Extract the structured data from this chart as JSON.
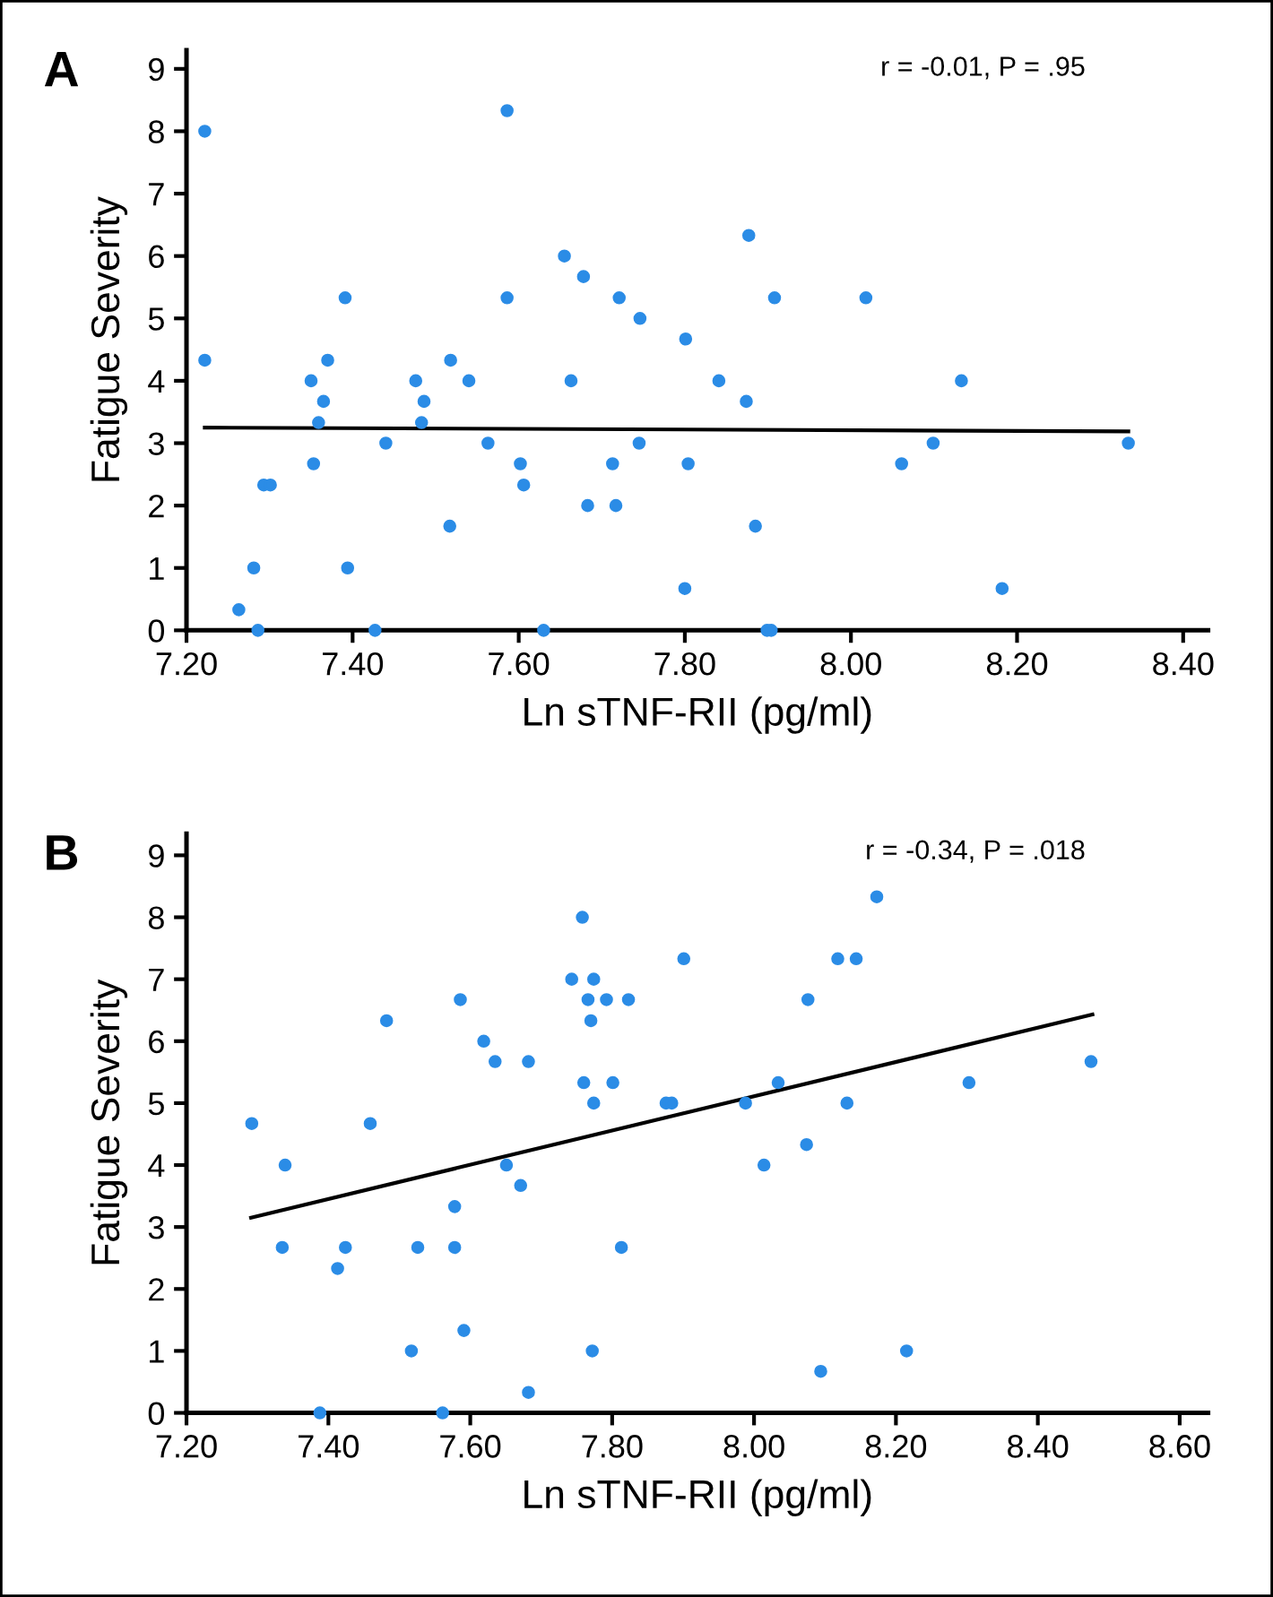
{
  "chart_data": [
    {
      "type": "scatter",
      "title": "A",
      "xlabel": "Ln sTNF-RII (pg/ml)",
      "ylabel": "Fatigue Severity",
      "annotations": [
        "r = -0.01, P = .95"
      ],
      "xlim": [
        7.2,
        8.43
      ],
      "ylim": [
        0,
        9.3
      ],
      "xticks": [
        {
          "value": 7.2,
          "label": "7.20"
        },
        {
          "value": 7.4,
          "label": "7.40"
        },
        {
          "value": 7.6,
          "label": "7.60"
        },
        {
          "value": 7.8,
          "label": "7.80"
        },
        {
          "value": 8.0,
          "label": "8.00"
        },
        {
          "value": 8.2,
          "label": "8.20"
        },
        {
          "value": 8.4,
          "label": "8.40"
        }
      ],
      "yticks": [
        0,
        1,
        2,
        3,
        4,
        5,
        6,
        7,
        8,
        9
      ],
      "grid": false,
      "legend": false,
      "marker": "circle",
      "series": [
        {
          "color": "#2b8ce6",
          "x": [
            7.222,
            7.222,
            7.263,
            7.281,
            7.286,
            7.293,
            7.301,
            7.35,
            7.37,
            7.365,
            7.359,
            7.353,
            7.391,
            7.394,
            7.427,
            7.44,
            7.476,
            7.486,
            7.483,
            7.518,
            7.517,
            7.54,
            7.563,
            7.586,
            7.586,
            7.602,
            7.606,
            7.63,
            7.655,
            7.663,
            7.678,
            7.683,
            7.721,
            7.713,
            7.717,
            7.746,
            7.745,
            7.801,
            7.841,
            7.874,
            7.877,
            7.908,
            7.804,
            7.8,
            7.885,
            7.899,
            7.904,
            8.018,
            8.133,
            8.099,
            8.061,
            8.182,
            8.334
          ],
          "values": [
            8,
            4.33,
            0.33,
            1,
            0,
            2.33,
            2.33,
            4,
            4.33,
            3.67,
            3.33,
            2.67,
            5.33,
            1,
            0,
            3,
            4,
            3.67,
            3.33,
            4.33,
            1.67,
            4,
            3,
            8.33,
            5.33,
            2.67,
            2.33,
            0,
            6,
            4,
            5.67,
            2,
            5.33,
            2.67,
            2,
            5,
            3,
            4.67,
            4,
            3.67,
            6.33,
            5.33,
            2.67,
            0.67,
            1.67,
            0,
            0,
            5.33,
            4,
            3,
            2.67,
            0.67,
            3
          ]
        },
        {
          "type": "line",
          "color": "#000000",
          "marker": "none",
          "x": [
            7.222,
            8.334
          ],
          "values": [
            3.25,
            3.19
          ]
        }
      ]
    },
    {
      "type": "scatter",
      "title": "B",
      "xlabel": "Ln sTNF-RII (pg/ml)",
      "ylabel": "Fatigue Severity",
      "annotations": [
        "r = -0.34, P = .018"
      ],
      "xlim": [
        7.2,
        8.64
      ],
      "ylim": [
        0,
        9.35
      ],
      "xticks": [
        {
          "value": 7.2,
          "label": "7.20"
        },
        {
          "value": 7.4,
          "label": "7.40"
        },
        {
          "value": 7.6,
          "label": "7.60"
        },
        {
          "value": 7.8,
          "label": "7.80"
        },
        {
          "value": 8.0,
          "label": "8.00"
        },
        {
          "value": 8.2,
          "label": "8.20"
        },
        {
          "value": 8.4,
          "label": "8.40"
        },
        {
          "value": 8.6,
          "label": "8.60"
        }
      ],
      "yticks": [
        0,
        1,
        2,
        3,
        4,
        5,
        6,
        7,
        8,
        9
      ],
      "grid": false,
      "legend": false,
      "marker": "circle",
      "series": [
        {
          "color": "#2b8ce6",
          "x": [
            7.292,
            7.339,
            7.335,
            7.388,
            7.413,
            7.424,
            7.459,
            7.482,
            7.517,
            7.526,
            7.561,
            7.578,
            7.578,
            7.586,
            7.591,
            7.619,
            7.635,
            7.651,
            7.671,
            7.682,
            7.682,
            7.743,
            7.758,
            7.774,
            7.766,
            7.792,
            7.823,
            7.77,
            7.76,
            7.801,
            7.774,
            7.772,
            7.813,
            7.901,
            7.876,
            7.884,
            7.988,
            8.034,
            8.014,
            8.074,
            8.076,
            8.118,
            8.144,
            8.173,
            8.131,
            8.303,
            8.475,
            8.215,
            8.094
          ],
          "values": [
            4.67,
            4,
            2.67,
            0,
            2.33,
            2.67,
            4.67,
            6.33,
            1,
            2.67,
            0,
            3.33,
            2.67,
            6.67,
            1.33,
            6,
            5.67,
            4,
            3.67,
            5.67,
            0.33,
            7,
            8,
            7,
            6.67,
            6.67,
            6.67,
            6.33,
            5.33,
            5.33,
            5,
            1,
            2.67,
            7.33,
            5,
            5,
            5,
            5.33,
            4,
            4.33,
            6.67,
            7.33,
            7.33,
            8.33,
            5,
            5.33,
            5.67,
            1,
            0.67
          ]
        },
        {
          "type": "line",
          "color": "#000000",
          "marker": "none",
          "x": [
            7.291,
            8.477
          ],
          "values": [
            3.15,
            6.43
          ]
        }
      ]
    }
  ]
}
